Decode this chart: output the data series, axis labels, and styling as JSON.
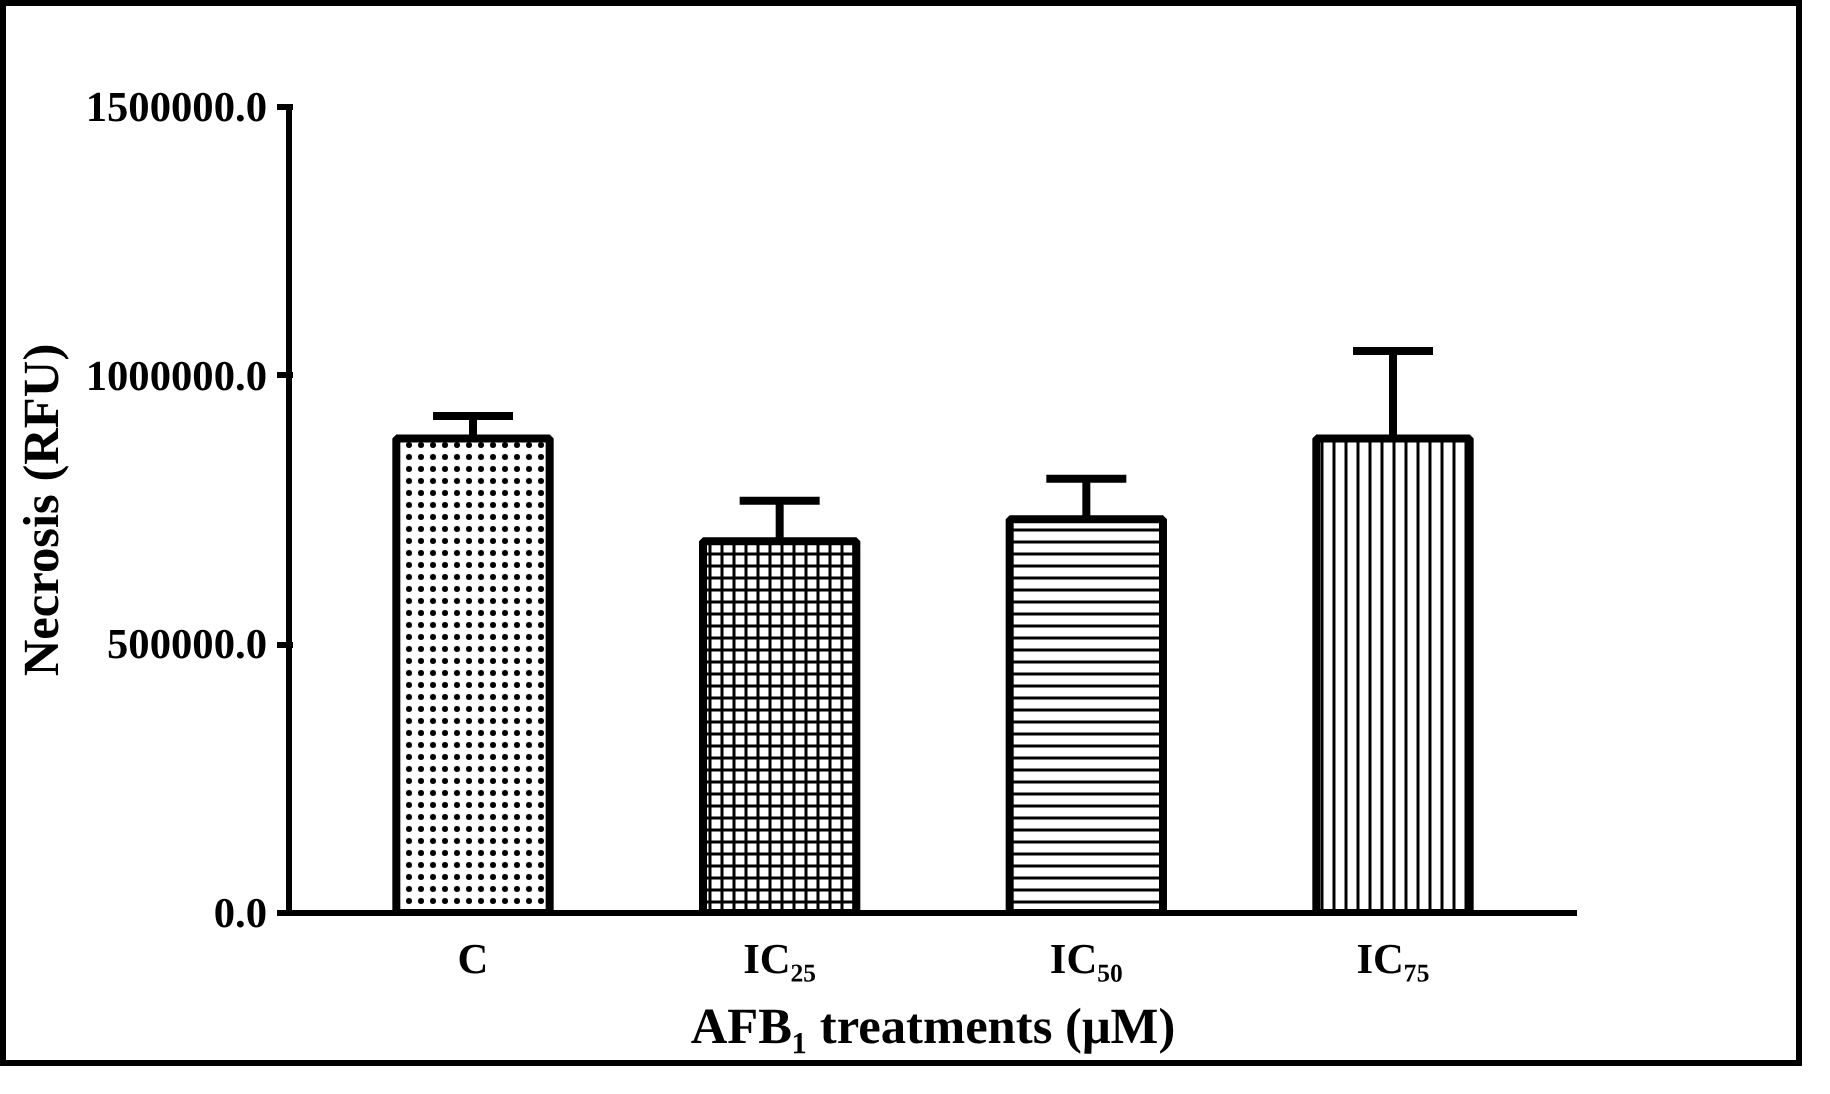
{
  "chart_data": {
    "type": "bar",
    "xlabel": "AFB₁ treatments (μM)",
    "ylabel": "Necrosis (RFU)",
    "categories": [
      "C",
      "IC₂₅",
      "IC₅₀",
      "IC₇₅"
    ],
    "values": [
      883000,
      692000,
      733000,
      883000
    ],
    "errors": [
      [
        883000,
        925000
      ],
      [
        692000,
        767000
      ],
      [
        733000,
        808000
      ],
      [
        883000,
        1046000
      ]
    ],
    "color": "#ffffff",
    "ylim": [
      0,
      1500000
    ],
    "yticks": [
      {
        "value": 0,
        "label": "0.0"
      },
      {
        "value": 500000,
        "label": "500000.0"
      },
      {
        "value": 1000000,
        "label": "1000000.0"
      },
      {
        "value": 1500000,
        "label": "1500000.0"
      }
    ],
    "grid": false
  }
}
